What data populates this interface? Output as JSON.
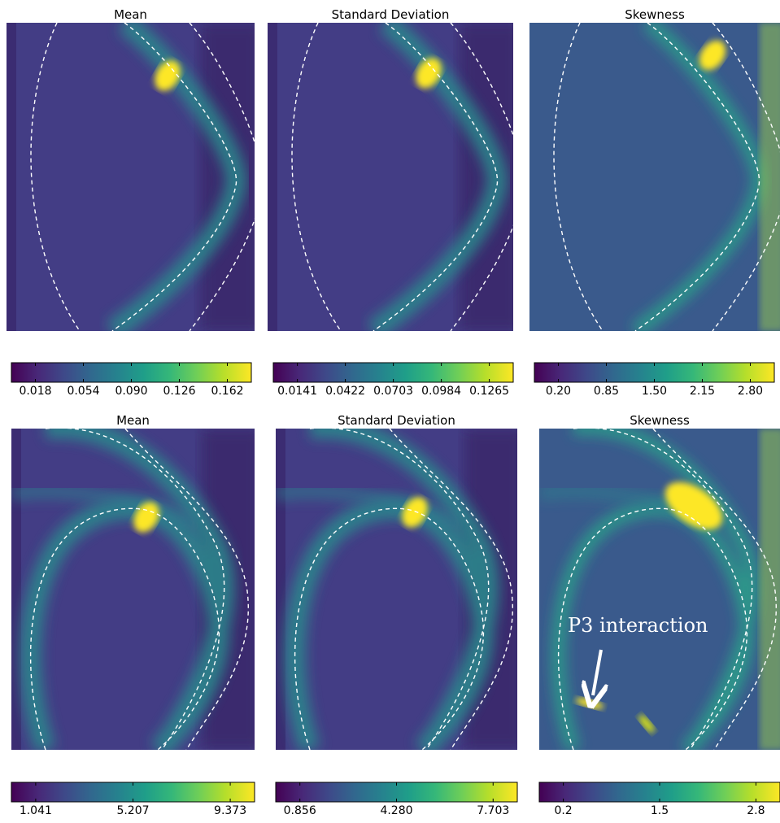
{
  "chart_data": [
    {
      "type": "heatmap",
      "title": "Mean",
      "colormap": "viridis",
      "clim": [
        0,
        0.18
      ],
      "cticks": [
        0.018,
        0.054,
        {
          "value": 0.09,
          "label": "0.090"
        },
        0.126,
        0.162
      ]
    },
    {
      "type": "heatmap",
      "title": "Standard Deviation",
      "colormap": "viridis",
      "clim": [
        0,
        0.1405
      ],
      "cticks": [
        0.0141,
        0.0422,
        0.0703,
        0.0984,
        0.1265
      ]
    },
    {
      "type": "heatmap",
      "title": "Skewness",
      "colormap": "viridis",
      "clim": [
        -0.125,
        3.125
      ],
      "cticks": [
        {
          "value": 0.2,
          "label": "0.20"
        },
        0.85,
        {
          "value": 1.5,
          "label": "1.50"
        },
        2.15,
        {
          "value": 2.8,
          "label": "2.80"
        }
      ]
    },
    {
      "type": "heatmap",
      "title": "Mean",
      "colormap": "viridis",
      "clim": [
        0,
        10.415
      ],
      "cticks": [
        1.041,
        5.207,
        9.373
      ]
    },
    {
      "type": "heatmap",
      "title": "Standard Deviation",
      "colormap": "viridis",
      "clim": [
        0,
        8.56
      ],
      "cticks": [
        0.856,
        {
          "value": 4.28,
          "label": "4.280"
        },
        7.703
      ]
    },
    {
      "type": "heatmap",
      "title": "Skewness",
      "colormap": "viridis",
      "clim": [
        -0.125,
        3.125
      ],
      "cticks": [
        0.2,
        1.5,
        2.8
      ],
      "annotation": "P3 interaction"
    }
  ]
}
